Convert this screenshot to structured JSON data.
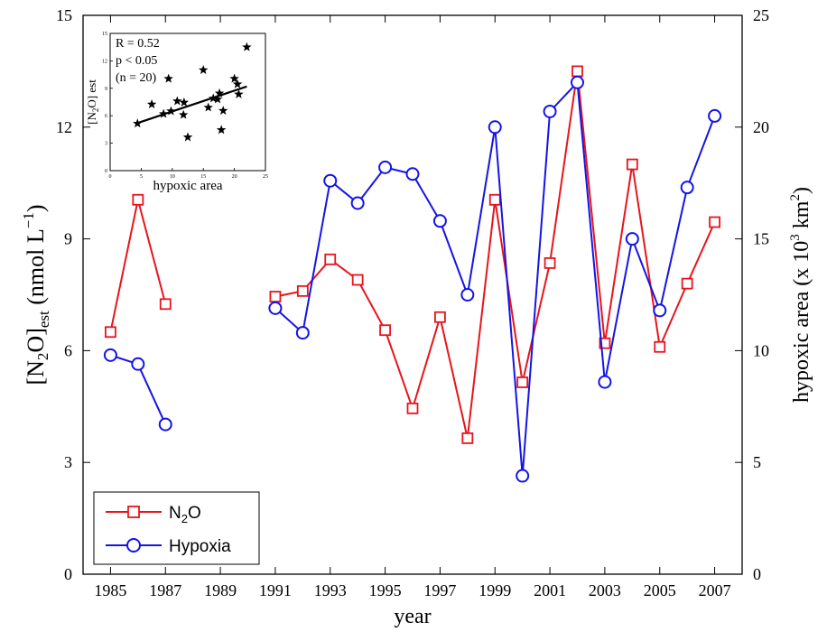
{
  "chart_data": {
    "type": "line",
    "xlabel": "year",
    "ylabel_left": "[N2O]est (nmol L−1)",
    "ylabel_right": "hypoxic area (x 10³ km²)",
    "xlim": [
      1984,
      2008
    ],
    "ylim_left": [
      0,
      15
    ],
    "ylim_right": [
      0,
      25
    ],
    "x_ticks": [
      1985,
      1987,
      1989,
      1991,
      1993,
      1995,
      1997,
      1999,
      2001,
      2003,
      2005,
      2007
    ],
    "y_left_ticks": [
      0,
      3,
      6,
      9,
      12,
      15
    ],
    "y_right_ticks": [
      0,
      5,
      10,
      15,
      20,
      25
    ],
    "grid": false,
    "legend_position": "bottom-left",
    "series": [
      {
        "name": "N2O",
        "axis": "left",
        "color": "#e8141c",
        "marker": "square",
        "segments": [
          {
            "x": [
              1985,
              1986,
              1987
            ],
            "y": [
              6.5,
              10.05,
              7.25
            ]
          },
          {
            "x": [
              1991,
              1992,
              1993,
              1994,
              1995,
              1996,
              1997,
              1998,
              1999,
              2000,
              2001,
              2002,
              2003,
              2004,
              2005,
              2006,
              2007
            ],
            "y": [
              7.45,
              7.6,
              8.45,
              7.9,
              6.55,
              4.45,
              6.9,
              3.65,
              10.05,
              5.15,
              8.35,
              13.5,
              6.2,
              11.0,
              6.1,
              7.8,
              9.45
            ]
          }
        ]
      },
      {
        "name": "Hypoxia",
        "axis": "right",
        "color": "#1414e6",
        "marker": "circle",
        "segments": [
          {
            "x": [
              1985,
              1986,
              1987
            ],
            "y": [
              9.8,
              9.4,
              6.7
            ]
          },
          {
            "x": [
              1991,
              1992,
              1993,
              1994,
              1995,
              1996,
              1997,
              1998,
              1999,
              2000,
              2001,
              2002,
              2003,
              2004,
              2005,
              2006,
              2007
            ],
            "y": [
              11.9,
              10.8,
              17.6,
              16.6,
              18.2,
              17.9,
              15.8,
              12.5,
              20.0,
              4.4,
              20.7,
              22.0,
              8.6,
              15.0,
              11.8,
              17.3,
              20.5
            ]
          }
        ]
      }
    ],
    "inset": {
      "type": "scatter",
      "xlabel": "hypoxic area",
      "ylabel": "[N2O] est",
      "xlim": [
        0,
        25
      ],
      "ylim": [
        0,
        15
      ],
      "x_ticks": [
        0,
        5,
        10,
        15,
        20,
        25
      ],
      "y_ticks": [
        0,
        3,
        6,
        9,
        12,
        15
      ],
      "annotations": [
        "R = 0.52",
        "p < 0.05",
        "(n = 20)"
      ],
      "points": [
        [
          4.4,
          5.15
        ],
        [
          6.7,
          7.25
        ],
        [
          8.6,
          6.2
        ],
        [
          9.4,
          10.05
        ],
        [
          9.8,
          6.5
        ],
        [
          10.8,
          7.6
        ],
        [
          11.8,
          6.1
        ],
        [
          11.9,
          7.45
        ],
        [
          12.5,
          3.65
        ],
        [
          15.0,
          11.0
        ],
        [
          15.8,
          6.9
        ],
        [
          16.6,
          7.9
        ],
        [
          17.3,
          7.8
        ],
        [
          17.6,
          8.45
        ],
        [
          17.9,
          4.45
        ],
        [
          18.2,
          6.55
        ],
        [
          20.0,
          10.05
        ],
        [
          20.5,
          9.45
        ],
        [
          20.7,
          8.35
        ],
        [
          22.0,
          13.5
        ]
      ],
      "fit_line": {
        "x": [
          4.4,
          22.0
        ],
        "y": [
          5.2,
          9.2
        ]
      }
    }
  }
}
